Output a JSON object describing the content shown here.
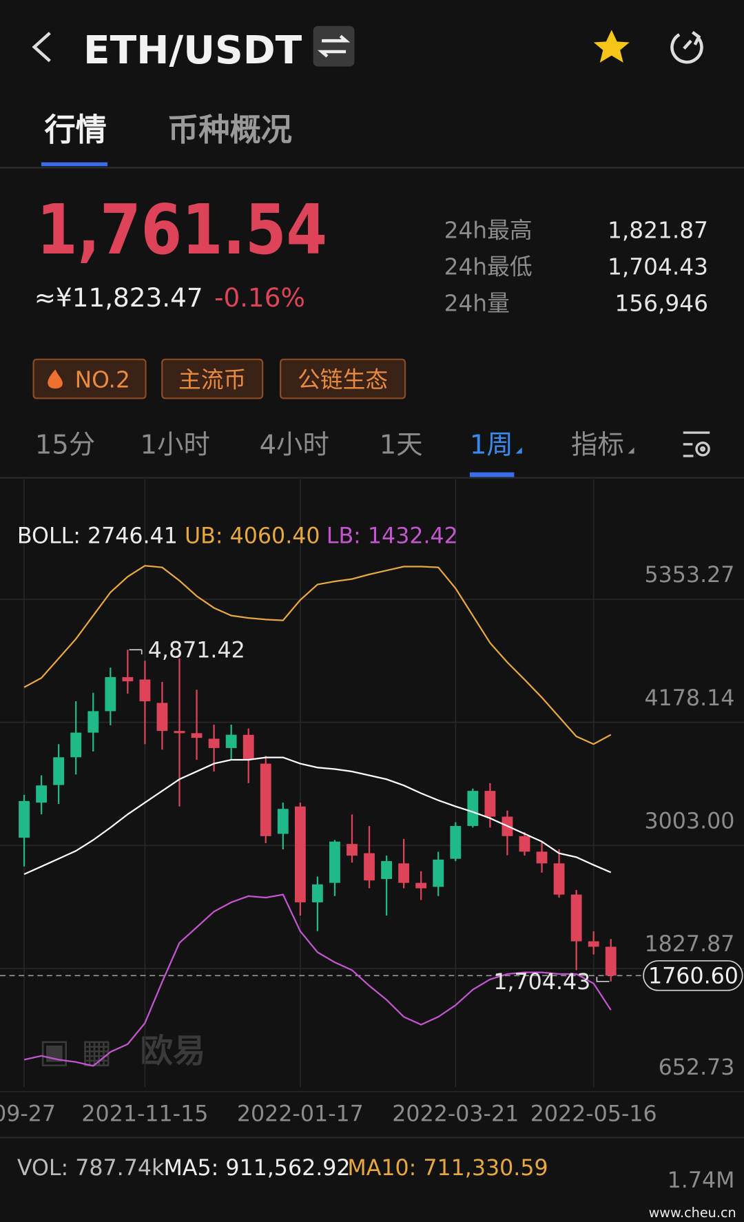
{
  "header": {
    "title": "ETH/USDT"
  },
  "tabs": [
    "行情",
    "币种概况"
  ],
  "price": {
    "last": "1,761.54",
    "cny": "≈¥11,823.47",
    "change": "-0.16%"
  },
  "stats": [
    {
      "label": "24h最高",
      "value": "1,821.87"
    },
    {
      "label": "24h最低",
      "value": "1,704.43"
    },
    {
      "label": "24h量",
      "value": "156,946"
    }
  ],
  "tags": [
    "NO.2",
    "主流币",
    "公链生态"
  ],
  "intervals": [
    "15分",
    "1小时",
    "4小时",
    "1天",
    "1周",
    "指标"
  ],
  "chart_data": {
    "type": "candlestick",
    "categories": [
      "09-27",
      null,
      null,
      null,
      null,
      null,
      null,
      "2021-11-15",
      null,
      null,
      null,
      null,
      null,
      null,
      null,
      null,
      "2022-01-17",
      null,
      null,
      null,
      null,
      null,
      null,
      null,
      null,
      "2022-03-21",
      null,
      null,
      null,
      null,
      null,
      null,
      null,
      "2022-05-16",
      null
    ],
    "open": [
      3077,
      3412,
      3580,
      3845,
      4080,
      4285,
      4610,
      4587,
      4364,
      4096,
      4075,
      4022,
      3933,
      4059,
      3784,
      3114,
      3375,
      2460,
      2646,
      3017,
      2929,
      2683,
      2832,
      2646,
      2608,
      2876,
      3189,
      3524,
      3278,
      3092,
      2944,
      2832,
      2534,
      2088,
      2036
    ],
    "high": [
      3486,
      3672,
      3970,
      4380,
      4460,
      4700,
      4871.42,
      4766,
      4565,
      4788,
      4490,
      4156,
      4156,
      4119,
      3858,
      3412,
      3412,
      2706,
      3055,
      3300,
      3188,
      2906,
      3065,
      2757,
      2943,
      3225,
      3546,
      3598,
      3337,
      3129,
      3040,
      2966,
      2579,
      2184,
      2110
    ],
    "low": [
      2802,
      3300,
      3400,
      3680,
      3900,
      4150,
      4453,
      3970,
      3918,
      3375,
      3820,
      3710,
      3820,
      3598,
      3025,
      2966,
      2334,
      2185,
      2520,
      2839,
      2594,
      2334,
      2594,
      2482,
      2520,
      2853,
      3174,
      3174,
      2910,
      2907,
      2743,
      2505,
      1813,
      1962,
      1704.43
    ],
    "close": [
      3427,
      3576,
      3845,
      4080,
      4285,
      4610,
      4570,
      4379,
      4096,
      4075,
      4030,
      3933,
      4060,
      3821,
      3092,
      3352,
      2460,
      2631,
      3040,
      2906,
      2669,
      2854,
      2646,
      2594,
      2868,
      3189,
      3524,
      3278,
      3092,
      2944,
      2832,
      2534,
      2088,
      2036,
      1760.6
    ],
    "up_color": "#20b98a",
    "down_color": "#de4459",
    "series": [
      {
        "label": "BOLL: 2746.41",
        "color": "#ffffff",
        "values": [
          2728,
          2802,
          2876,
          2951,
          3055,
          3174,
          3300,
          3412,
          3523,
          3635,
          3709,
          3784,
          3821,
          3821,
          3843,
          3843,
          3784,
          3747,
          3732,
          3709,
          3672,
          3635,
          3576,
          3501,
          3434,
          3375,
          3323,
          3263,
          3189,
          3114,
          3040,
          2928,
          2891,
          2817,
          2746.41
        ]
      },
      {
        "label": "UB: 4060.40",
        "color": "#e8a840",
        "values": [
          4513,
          4602,
          4788,
          4974,
          5197,
          5420,
          5569,
          5673,
          5658,
          5531,
          5383,
          5271,
          5197,
          5174,
          5160,
          5152,
          5346,
          5494,
          5524,
          5546,
          5591,
          5628,
          5665,
          5665,
          5658,
          5457,
          5197,
          4937,
          4751,
          4587,
          4416,
          4230,
          4044,
          3970,
          4060.4
        ]
      },
      {
        "label": "LB: 1432.42",
        "color": "#c455d0",
        "values": [
          958,
          995,
          958,
          935,
          898,
          1032,
          1106,
          1307,
          1701,
          2073,
          2222,
          2371,
          2460,
          2519,
          2505,
          2534,
          2185,
          1984,
          1887,
          1813,
          1664,
          1530,
          1367,
          1292,
          1367,
          1478,
          1627,
          1724,
          1776,
          1791,
          1791,
          1776,
          1776,
          1686,
          1432.42
        ]
      }
    ],
    "ylim": [
      652.73,
      6498
    ],
    "yticks": [
      652.73,
      1827.87,
      {
        "value": 3003,
        "label": "3003.00"
      },
      4178.14,
      5353.27
    ],
    "grid": true,
    "last_price": {
      "value": 1760.6,
      "label": "1760.60"
    },
    "annotations": [
      {
        "label": "4,871.42",
        "value": 4871.42,
        "of": "high"
      },
      {
        "label": "1,704.43",
        "value": 1704.43,
        "of": "low"
      }
    ]
  },
  "volume_legend": [
    "VOL: 787.74k",
    "MA5: 911,562.92",
    "MA10: 711,330.59"
  ],
  "volume_max": "1.74M",
  "watermark_logo": "欧易",
  "watermark": "www.cheu.cn"
}
